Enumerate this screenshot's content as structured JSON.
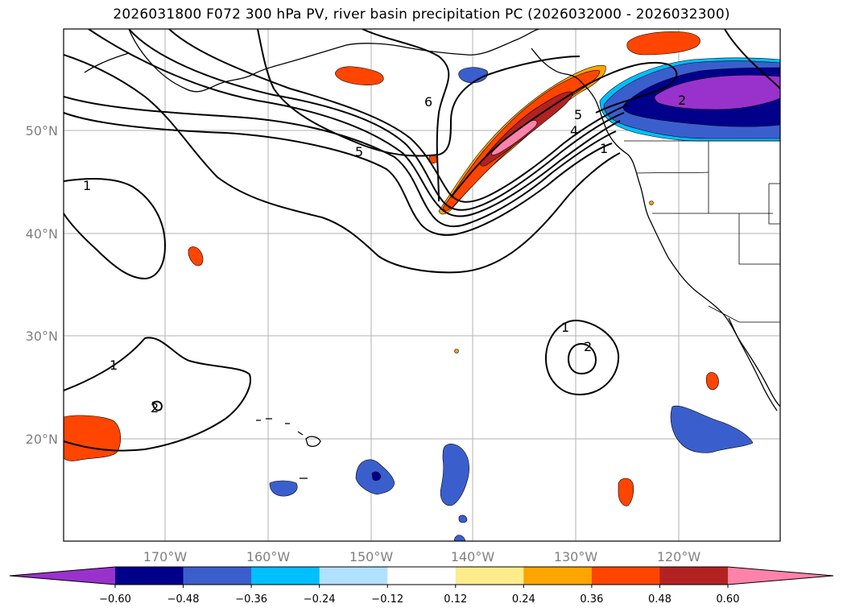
{
  "title": "2026031800 F072 300 hPa PV, river basin precipitation PC (2026032000 - 2026032300)",
  "axes": {
    "lat_ticks": [
      "50°N",
      "40°N",
      "30°N",
      "20°N"
    ],
    "lon_ticks": [
      "170°W",
      "160°W",
      "150°W",
      "140°W",
      "130°W",
      "120°W"
    ]
  },
  "contour_labels": [
    "1",
    "5",
    "6",
    "5",
    "4",
    "1",
    "2",
    "1",
    "2",
    "1",
    "2"
  ],
  "colorbar": {
    "colors": [
      "#9932CC",
      "#00008B",
      "#3A5FCD",
      "#00BFFF",
      "#B0E2FF",
      "#FFFFFF",
      "#FFEC8B",
      "#FFA500",
      "#FF4500",
      "#B22222",
      "#FF82AB"
    ],
    "ticks": [
      "−0.60",
      "−0.48",
      "−0.36",
      "−0.24",
      "−0.12",
      "0.12",
      "0.24",
      "0.36",
      "0.48",
      "0.60"
    ]
  }
}
